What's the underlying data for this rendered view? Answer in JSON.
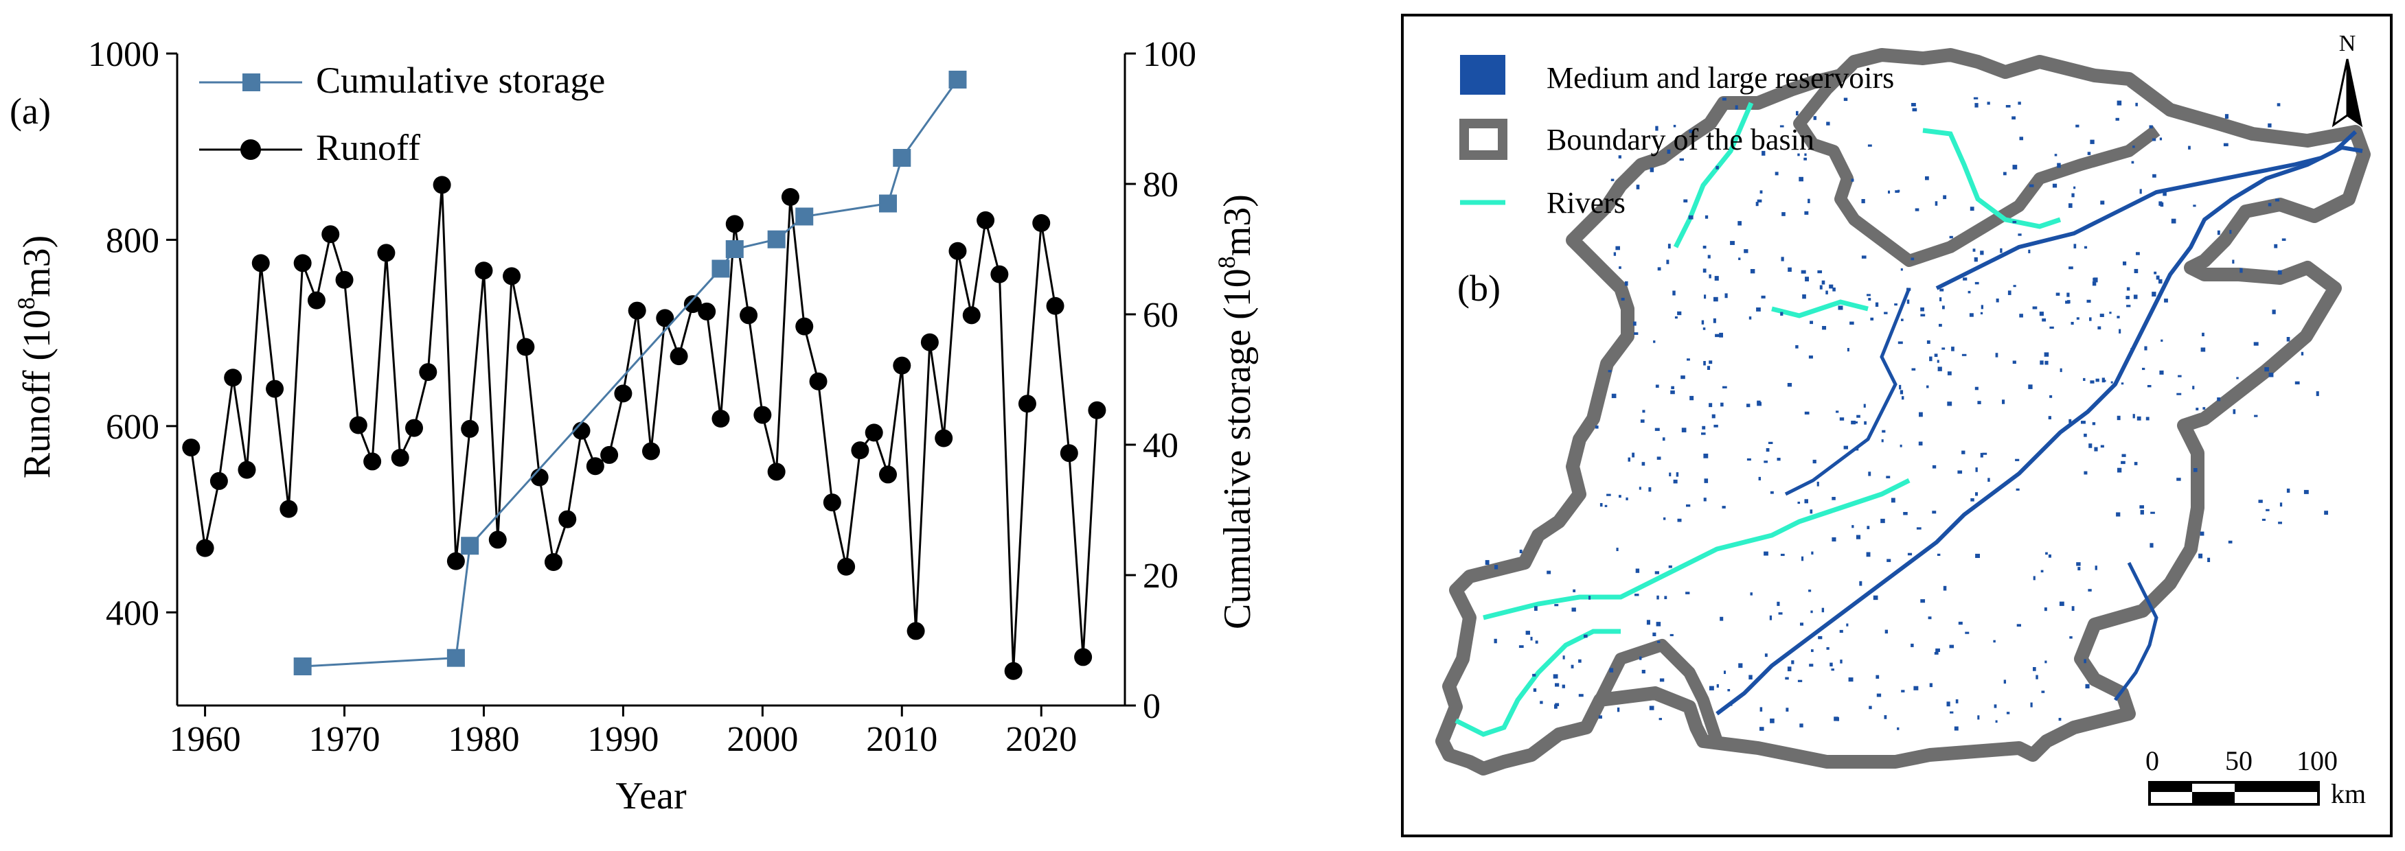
{
  "chart_data": [
    {
      "type": "line",
      "panel_label": "(a)",
      "title": "",
      "xlabel": "Year",
      "ylabel_left": "Runoff (10",
      "ylabel_left_sup": "8",
      "ylabel_left_unit": "m3)",
      "ylabel_right": "Cumulative storage (10",
      "ylabel_right_sup": "8",
      "ylabel_right_unit": "m3)",
      "xlim": [
        1958,
        2026
      ],
      "ylim_left": [
        300,
        1000
      ],
      "ylim_right": [
        0,
        100
      ],
      "x_ticks": [
        1960,
        1970,
        1980,
        1990,
        2000,
        2010,
        2020
      ],
      "y_ticks_left": [
        400,
        600,
        800,
        1000
      ],
      "y_ticks_right": [
        0,
        20,
        40,
        60,
        80,
        100
      ],
      "legend": [
        {
          "label": "Cumulative storage",
          "color": "#4a7aa5",
          "marker": "square"
        },
        {
          "label": "Runoff",
          "color": "#000000",
          "marker": "circle"
        }
      ],
      "series": [
        {
          "name": "Runoff",
          "axis": "left",
          "color": "#000000",
          "x": [
            1959,
            1960,
            1961,
            1962,
            1963,
            1964,
            1965,
            1966,
            1967,
            1968,
            1969,
            1970,
            1971,
            1972,
            1973,
            1974,
            1975,
            1976,
            1977,
            1978,
            1979,
            1980,
            1981,
            1982,
            1983,
            1984,
            1985,
            1986,
            1987,
            1988,
            1989,
            1990,
            1991,
            1992,
            1993,
            1994,
            1995,
            1996,
            1997,
            1998,
            1999,
            2000,
            2001,
            2002,
            2003,
            2004,
            2005,
            2006,
            2007,
            2008,
            2009,
            2010,
            2011,
            2012,
            2013,
            2014,
            2015,
            2016,
            2017,
            2018,
            2019,
            2020,
            2021,
            2022,
            2023,
            2024
          ],
          "values": [
            577,
            469,
            541,
            652,
            553,
            775,
            640,
            511,
            775,
            735,
            806,
            757,
            601,
            562,
            786,
            566,
            598,
            658,
            859,
            455,
            597,
            767,
            478,
            761,
            685,
            545,
            454,
            500,
            595,
            557,
            569,
            635,
            724,
            573,
            716,
            675,
            731,
            723,
            608,
            817,
            719,
            612,
            551,
            846,
            707,
            648,
            518,
            449,
            574,
            593,
            548,
            665,
            380,
            690,
            587,
            788,
            719,
            821,
            763,
            337,
            624,
            818,
            729,
            571,
            352,
            617
          ]
        },
        {
          "name": "Cumulative storage",
          "axis": "right",
          "color": "#4a7aa5",
          "x": [
            1967,
            1978,
            1979,
            1997,
            1998,
            2001,
            2003,
            2009,
            2010,
            2014
          ],
          "values": [
            6.0,
            7.3,
            24.5,
            67.0,
            70.0,
            71.5,
            75.0,
            77.0,
            84.0,
            96.0
          ]
        }
      ]
    },
    {
      "type": "map",
      "panel_label": "(b)",
      "legend": [
        {
          "label": "Medium and large reservoirs",
          "color": "#1a50a5"
        },
        {
          "label": "Boundary of the basin",
          "color": "#6e6e6e"
        },
        {
          "label": "Rivers",
          "color": "#2ef0c8"
        }
      ],
      "north_label": "N",
      "scale_ticks": [
        "0",
        "50",
        "100"
      ],
      "scale_unit": "km"
    }
  ]
}
